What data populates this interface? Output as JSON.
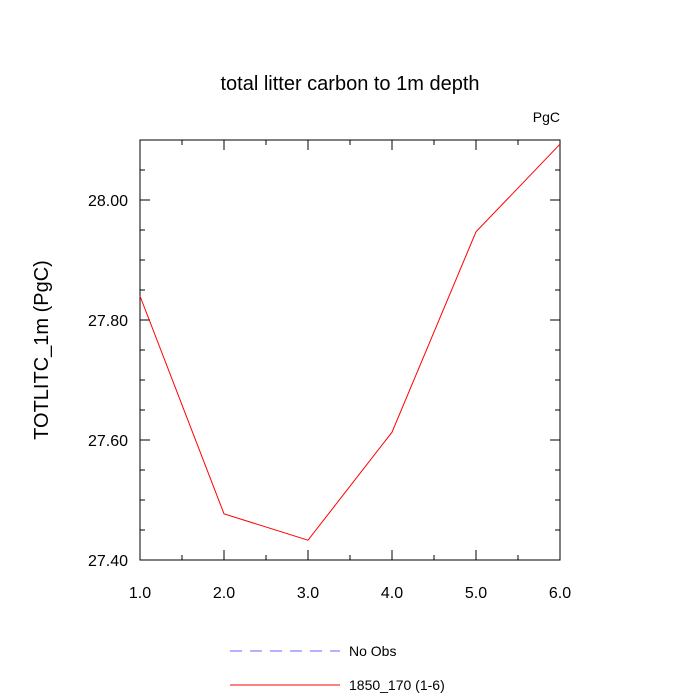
{
  "chart_data": {
    "type": "line",
    "title": "total litter carbon to 1m depth",
    "units_label": "PgC",
    "ylabel": "TOTLITC_1m  (PgC)",
    "xlabel": "",
    "xlim": [
      1.0,
      6.0
    ],
    "ylim": [
      27.4,
      28.1
    ],
    "x_ticks": [
      1.0,
      2.0,
      3.0,
      4.0,
      5.0,
      6.0
    ],
    "x_tick_labels": [
      "1.0",
      "2.0",
      "3.0",
      "4.0",
      "5.0",
      "6.0"
    ],
    "y_ticks": [
      27.4,
      27.6,
      27.8,
      28.0
    ],
    "y_tick_labels": [
      "27.40",
      "27.60",
      "27.80",
      "28.00"
    ],
    "y_minor_step": 0.05,
    "x_minor_step": 0.5,
    "grid": false,
    "legend_position": "bottom",
    "series": [
      {
        "name": "No Obs",
        "color": "#6666ff",
        "dash": "dashed",
        "x": [],
        "y": []
      },
      {
        "name": "1850_170 (1-6)",
        "color": "#ff0000",
        "dash": "solid",
        "x": [
          1,
          2,
          3,
          4,
          5,
          6
        ],
        "y": [
          27.84,
          27.477,
          27.433,
          27.613,
          27.947,
          28.093
        ]
      }
    ]
  }
}
